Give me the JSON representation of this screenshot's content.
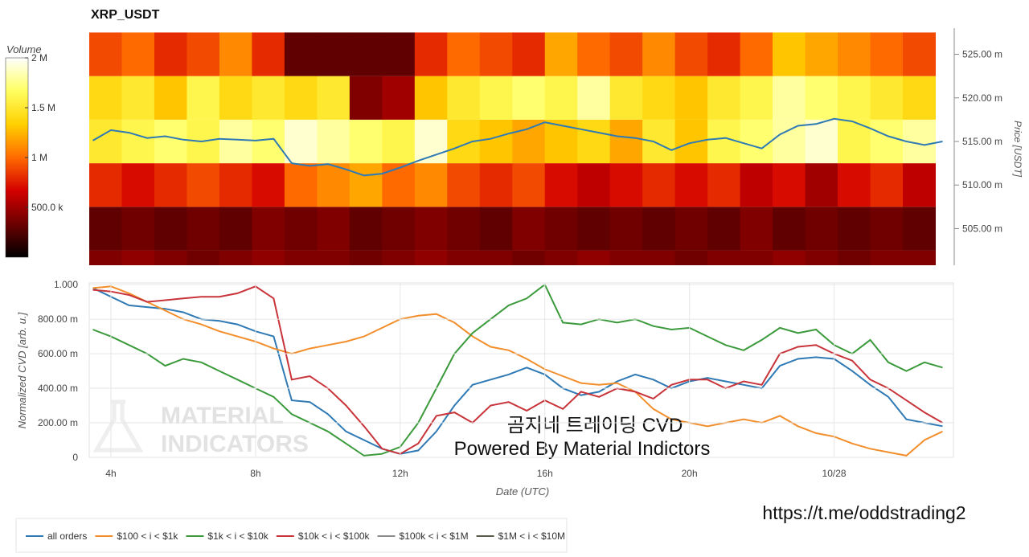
{
  "chart_data": [
    {
      "type": "heatmap",
      "title": "XRP_USDT",
      "ylabel": "Price [USDT]",
      "xlim": [
        3.4,
        27.3
      ],
      "ylim": [
        500.8,
        528
      ],
      "yticks": [
        {
          "value": 505,
          "label": "505.00 m"
        },
        {
          "value": 510,
          "label": "510.00 m"
        },
        {
          "value": 515,
          "label": "515.00 m"
        },
        {
          "value": 520,
          "label": "520.00 m"
        },
        {
          "value": 525,
          "label": "525.00 m"
        }
      ],
      "xbins": [
        3.4,
        4.3,
        5.2,
        6.1,
        7.0,
        7.9,
        8.8,
        9.7,
        10.6,
        11.5,
        12.4,
        13.3,
        14.2,
        15.1,
        16.0,
        16.9,
        17.8,
        18.7,
        19.6,
        20.5,
        21.4,
        22.3,
        23.2,
        24.1,
        25.0,
        25.9,
        26.8
      ],
      "ybins": [
        500,
        502.5,
        507.5,
        512.5,
        517.5,
        522.5,
        527.5
      ],
      "z": [
        [
          400000,
          450000,
          400000,
          350000,
          400000,
          450000,
          400000,
          400000,
          350000,
          400000,
          450000,
          400000,
          400000,
          350000,
          400000,
          450000,
          400000,
          400000,
          350000,
          400000,
          400000,
          450000,
          400000,
          350000,
          400000,
          400000
        ],
        [
          300000,
          350000,
          300000,
          350000,
          300000,
          400000,
          350000,
          400000,
          300000,
          350000,
          400000,
          350000,
          300000,
          400000,
          350000,
          300000,
          350000,
          300000,
          350000,
          300000,
          400000,
          300000,
          350000,
          300000,
          350000,
          300000
        ],
        [
          800000,
          700000,
          800000,
          900000,
          800000,
          700000,
          1000000,
          1100000,
          1200000,
          1000000,
          1100000,
          900000,
          800000,
          900000,
          700000,
          600000,
          700000,
          800000,
          700000,
          800000,
          600000,
          700000,
          500000,
          700000,
          800000,
          600000
        ],
        [
          1500000,
          1600000,
          1700000,
          1600000,
          1800000,
          1700000,
          1900000,
          1800000,
          1700000,
          1600000,
          1900000,
          1400000,
          1300000,
          1200000,
          1300000,
          1400000,
          1200000,
          1500000,
          1300000,
          1600000,
          1700000,
          1800000,
          1900000,
          1600000,
          1700000,
          1800000
        ],
        [
          1400000,
          1500000,
          1300000,
          1600000,
          1400000,
          1500000,
          1400000,
          1500000,
          400000,
          500000,
          1300000,
          1500000,
          1600000,
          1700000,
          1600000,
          1800000,
          1500000,
          1400000,
          1300000,
          1500000,
          1600000,
          1800000,
          1700000,
          1600000,
          1500000,
          1400000
        ],
        [
          900000,
          1000000,
          800000,
          900000,
          1100000,
          800000,
          300000,
          300000,
          300000,
          300000,
          800000,
          1000000,
          900000,
          800000,
          1200000,
          1000000,
          900000,
          1100000,
          900000,
          800000,
          1000000,
          1300000,
          1200000,
          1100000,
          1000000,
          900000
        ]
      ],
      "colorbar": {
        "label": "Volume",
        "clim": [
          0,
          2000000
        ],
        "ticks": [
          {
            "value": 500000,
            "label": "500.0 k"
          },
          {
            "value": 1000000,
            "label": "1 M"
          },
          {
            "value": 1500000,
            "label": "1.5 M"
          },
          {
            "value": 2000000,
            "label": "2 M"
          }
        ],
        "colormap": [
          "#000000",
          "#6b0000",
          "#d40000",
          "#ff6a00",
          "#ffd000",
          "#ffff60",
          "#ffffff"
        ]
      },
      "price": {
        "color": "#2f7ab5",
        "x": [
          3.5,
          4,
          4.5,
          5,
          5.5,
          6,
          6.5,
          7,
          7.5,
          8,
          8.5,
          9,
          9.5,
          10,
          10.5,
          11,
          11.5,
          12,
          12.5,
          13,
          13.5,
          14,
          14.5,
          15,
          15.5,
          16,
          16.5,
          17,
          17.5,
          18,
          18.5,
          19,
          19.5,
          20,
          20.5,
          21,
          21.5,
          22,
          22.5,
          23,
          23.5,
          24,
          24.5,
          25,
          25.5,
          26,
          26.5,
          27
        ],
        "values": [
          515.1,
          516.3,
          516,
          515.4,
          515.6,
          515.2,
          515.0,
          515.3,
          515.2,
          515.1,
          515.3,
          512.5,
          512.2,
          512.4,
          511.8,
          511.1,
          511.3,
          512.0,
          512.8,
          513.5,
          514.2,
          515.0,
          515.3,
          515.9,
          516.4,
          517.2,
          516.8,
          516.4,
          516.0,
          515.6,
          515.4,
          515.0,
          514.0,
          514.8,
          515.2,
          515.4,
          514.8,
          514.2,
          515.8,
          516.8,
          517.0,
          517.6,
          517.3,
          516.5,
          515.6,
          515.0,
          514.6,
          515.0
        ]
      }
    },
    {
      "type": "line",
      "ylabel": "Normalized CVD [arb. u.]",
      "xlabel": "Date (UTC)",
      "xlim": [
        3.4,
        27.3
      ],
      "xticks": [
        {
          "value": 4,
          "label": "4h"
        },
        {
          "value": 8,
          "label": "8h"
        },
        {
          "value": 12,
          "label": "12h"
        },
        {
          "value": 16,
          "label": "16h"
        },
        {
          "value": 20,
          "label": "20h"
        },
        {
          "value": 24,
          "label": "10/28"
        }
      ],
      "ylim": [
        0,
        1.01
      ],
      "yticks": [
        0,
        {
          "value": 0.2,
          "label": "200.00 m"
        },
        {
          "value": 0.4,
          "label": "400.00 m"
        },
        {
          "value": 0.6,
          "label": "600.00 m"
        },
        {
          "value": 0.8,
          "label": "800.00 m"
        },
        {
          "value": 1,
          "label": "1.000"
        }
      ],
      "grid": true,
      "watermark": [
        "MATERIAL",
        "INDICATORS"
      ],
      "annotations": [
        "곰지네 트레이딩 CVD",
        "Powered By Material Indictors"
      ],
      "x": [
        3.5,
        4,
        4.5,
        5,
        5.5,
        6,
        6.5,
        7,
        7.5,
        8,
        8.5,
        9,
        9.5,
        10,
        10.5,
        11,
        11.5,
        12,
        12.5,
        13,
        13.5,
        14,
        14.5,
        15,
        15.5,
        16,
        16.5,
        17,
        17.5,
        18,
        18.5,
        19,
        19.5,
        20,
        20.5,
        21,
        21.5,
        22,
        22.5,
        23,
        23.5,
        24,
        24.5,
        25,
        25.5,
        26,
        26.5,
        27
      ],
      "series": [
        {
          "name": "all orders",
          "color": "#2f7ab5",
          "values": [
            0.98,
            0.93,
            0.88,
            0.87,
            0.86,
            0.84,
            0.8,
            0.79,
            0.77,
            0.73,
            0.7,
            0.33,
            0.32,
            0.25,
            0.15,
            0.1,
            0.05,
            0.02,
            0.04,
            0.15,
            0.3,
            0.42,
            0.45,
            0.48,
            0.52,
            0.48,
            0.4,
            0.36,
            0.38,
            0.44,
            0.48,
            0.45,
            0.4,
            0.44,
            0.46,
            0.44,
            0.42,
            0.4,
            0.53,
            0.57,
            0.58,
            0.57,
            0.5,
            0.42,
            0.35,
            0.22,
            0.2,
            0.18
          ]
        },
        {
          "name": "$100 < i < $1k",
          "color": "#f28e2b",
          "values": [
            0.98,
            0.99,
            0.95,
            0.9,
            0.85,
            0.8,
            0.77,
            0.73,
            0.7,
            0.67,
            0.63,
            0.6,
            0.63,
            0.65,
            0.67,
            0.7,
            0.75,
            0.8,
            0.82,
            0.83,
            0.78,
            0.7,
            0.64,
            0.62,
            0.57,
            0.51,
            0.47,
            0.43,
            0.42,
            0.43,
            0.38,
            0.28,
            0.22,
            0.2,
            0.18,
            0.2,
            0.22,
            0.2,
            0.24,
            0.18,
            0.14,
            0.12,
            0.08,
            0.05,
            0.03,
            0.01,
            0.1,
            0.15
          ]
        },
        {
          "name": "$1k < i < $10k",
          "color": "#3b9a3b",
          "values": [
            0.74,
            0.7,
            0.65,
            0.6,
            0.53,
            0.57,
            0.55,
            0.5,
            0.45,
            0.4,
            0.35,
            0.25,
            0.2,
            0.15,
            0.08,
            0.01,
            0.02,
            0.06,
            0.2,
            0.4,
            0.6,
            0.72,
            0.8,
            0.88,
            0.92,
            1.0,
            0.78,
            0.77,
            0.8,
            0.78,
            0.8,
            0.76,
            0.74,
            0.75,
            0.7,
            0.65,
            0.62,
            0.68,
            0.75,
            0.72,
            0.74,
            0.65,
            0.6,
            0.68,
            0.55,
            0.5,
            0.55,
            0.52
          ]
        },
        {
          "name": "$10k < i < $100k",
          "color": "#c8343a",
          "values": [
            0.97,
            0.96,
            0.94,
            0.9,
            0.91,
            0.92,
            0.93,
            0.93,
            0.95,
            0.99,
            0.92,
            0.45,
            0.47,
            0.4,
            0.3,
            0.18,
            0.05,
            0.02,
            0.08,
            0.24,
            0.26,
            0.2,
            0.3,
            0.32,
            0.27,
            0.33,
            0.28,
            0.38,
            0.35,
            0.4,
            0.38,
            0.34,
            0.42,
            0.45,
            0.45,
            0.4,
            0.44,
            0.42,
            0.6,
            0.64,
            0.65,
            0.6,
            0.56,
            0.45,
            0.4,
            0.33,
            0.26,
            0.2
          ]
        },
        {
          "name": "$100k < i < $1M",
          "color": "#8c8c8c",
          "values": [
            null,
            null,
            null,
            null,
            null,
            null,
            null,
            null,
            null,
            null,
            null,
            null,
            null,
            null,
            null,
            null,
            null,
            null,
            null,
            null,
            null,
            null,
            null,
            null,
            null,
            null,
            null,
            null,
            null,
            null,
            null,
            null,
            null,
            null,
            null,
            null,
            null,
            null,
            null,
            null,
            null,
            null,
            null,
            null,
            null,
            null,
            null,
            null
          ]
        },
        {
          "name": "$1M < i < $10M",
          "color": "#5a5a4a",
          "values": [
            null,
            null,
            null,
            null,
            null,
            null,
            null,
            null,
            null,
            null,
            null,
            null,
            null,
            null,
            null,
            null,
            null,
            null,
            null,
            null,
            null,
            null,
            null,
            null,
            null,
            null,
            null,
            null,
            null,
            null,
            null,
            null,
            null,
            null,
            null,
            null,
            null,
            null,
            null,
            null,
            null,
            null,
            null,
            null,
            null,
            null,
            null,
            null
          ]
        }
      ]
    }
  ],
  "footer_url": "https://t.me/oddstrading2"
}
